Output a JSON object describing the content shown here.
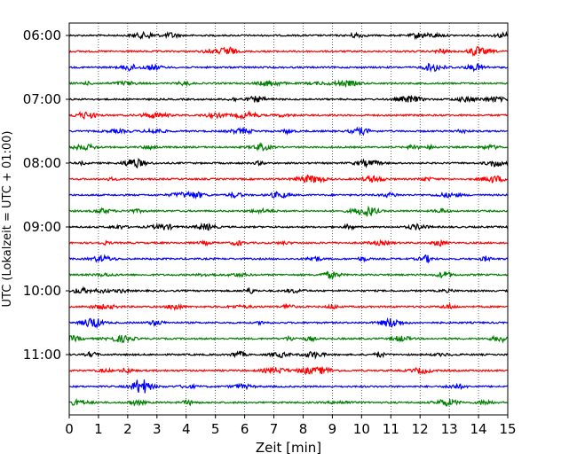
{
  "chart_data": {
    "type": "line",
    "title": "",
    "xlabel": "Zeit  [min]",
    "ylabel": "UTC (Lokalzeit = UTC + 01:00)",
    "xlim": [
      0,
      15
    ],
    "x_ticks": [
      "0",
      "1",
      "2",
      "3",
      "4",
      "5",
      "6",
      "7",
      "8",
      "9",
      "10",
      "11",
      "12",
      "13",
      "14",
      "15"
    ],
    "y_ticks": [
      "06:00",
      "07:00",
      "08:00",
      "09:00",
      "10:00",
      "11:00"
    ],
    "trace_interval_min": 15,
    "start_time": "06:00",
    "grid": "vertical dotted",
    "colors": [
      "#000000",
      "#ff0000",
      "#0000ff",
      "#008000"
    ],
    "series": [
      {
        "start": "06:00",
        "color": "#000000"
      },
      {
        "start": "06:15",
        "color": "#ff0000"
      },
      {
        "start": "06:30",
        "color": "#0000ff"
      },
      {
        "start": "06:45",
        "color": "#008000"
      },
      {
        "start": "07:00",
        "color": "#000000"
      },
      {
        "start": "07:15",
        "color": "#ff0000"
      },
      {
        "start": "07:30",
        "color": "#0000ff"
      },
      {
        "start": "07:45",
        "color": "#008000"
      },
      {
        "start": "08:00",
        "color": "#000000"
      },
      {
        "start": "08:15",
        "color": "#ff0000"
      },
      {
        "start": "08:30",
        "color": "#0000ff"
      },
      {
        "start": "08:45",
        "color": "#008000"
      },
      {
        "start": "09:00",
        "color": "#000000"
      },
      {
        "start": "09:15",
        "color": "#ff0000"
      },
      {
        "start": "09:30",
        "color": "#0000ff"
      },
      {
        "start": "09:45",
        "color": "#008000"
      },
      {
        "start": "10:00",
        "color": "#000000"
      },
      {
        "start": "10:15",
        "color": "#ff0000"
      },
      {
        "start": "10:30",
        "color": "#0000ff"
      },
      {
        "start": "10:45",
        "color": "#008000"
      },
      {
        "start": "11:00",
        "color": "#000000"
      },
      {
        "start": "11:15",
        "color": "#ff0000"
      },
      {
        "start": "11:30",
        "color": "#0000ff"
      },
      {
        "start": "11:45",
        "color": "#008000"
      }
    ]
  }
}
